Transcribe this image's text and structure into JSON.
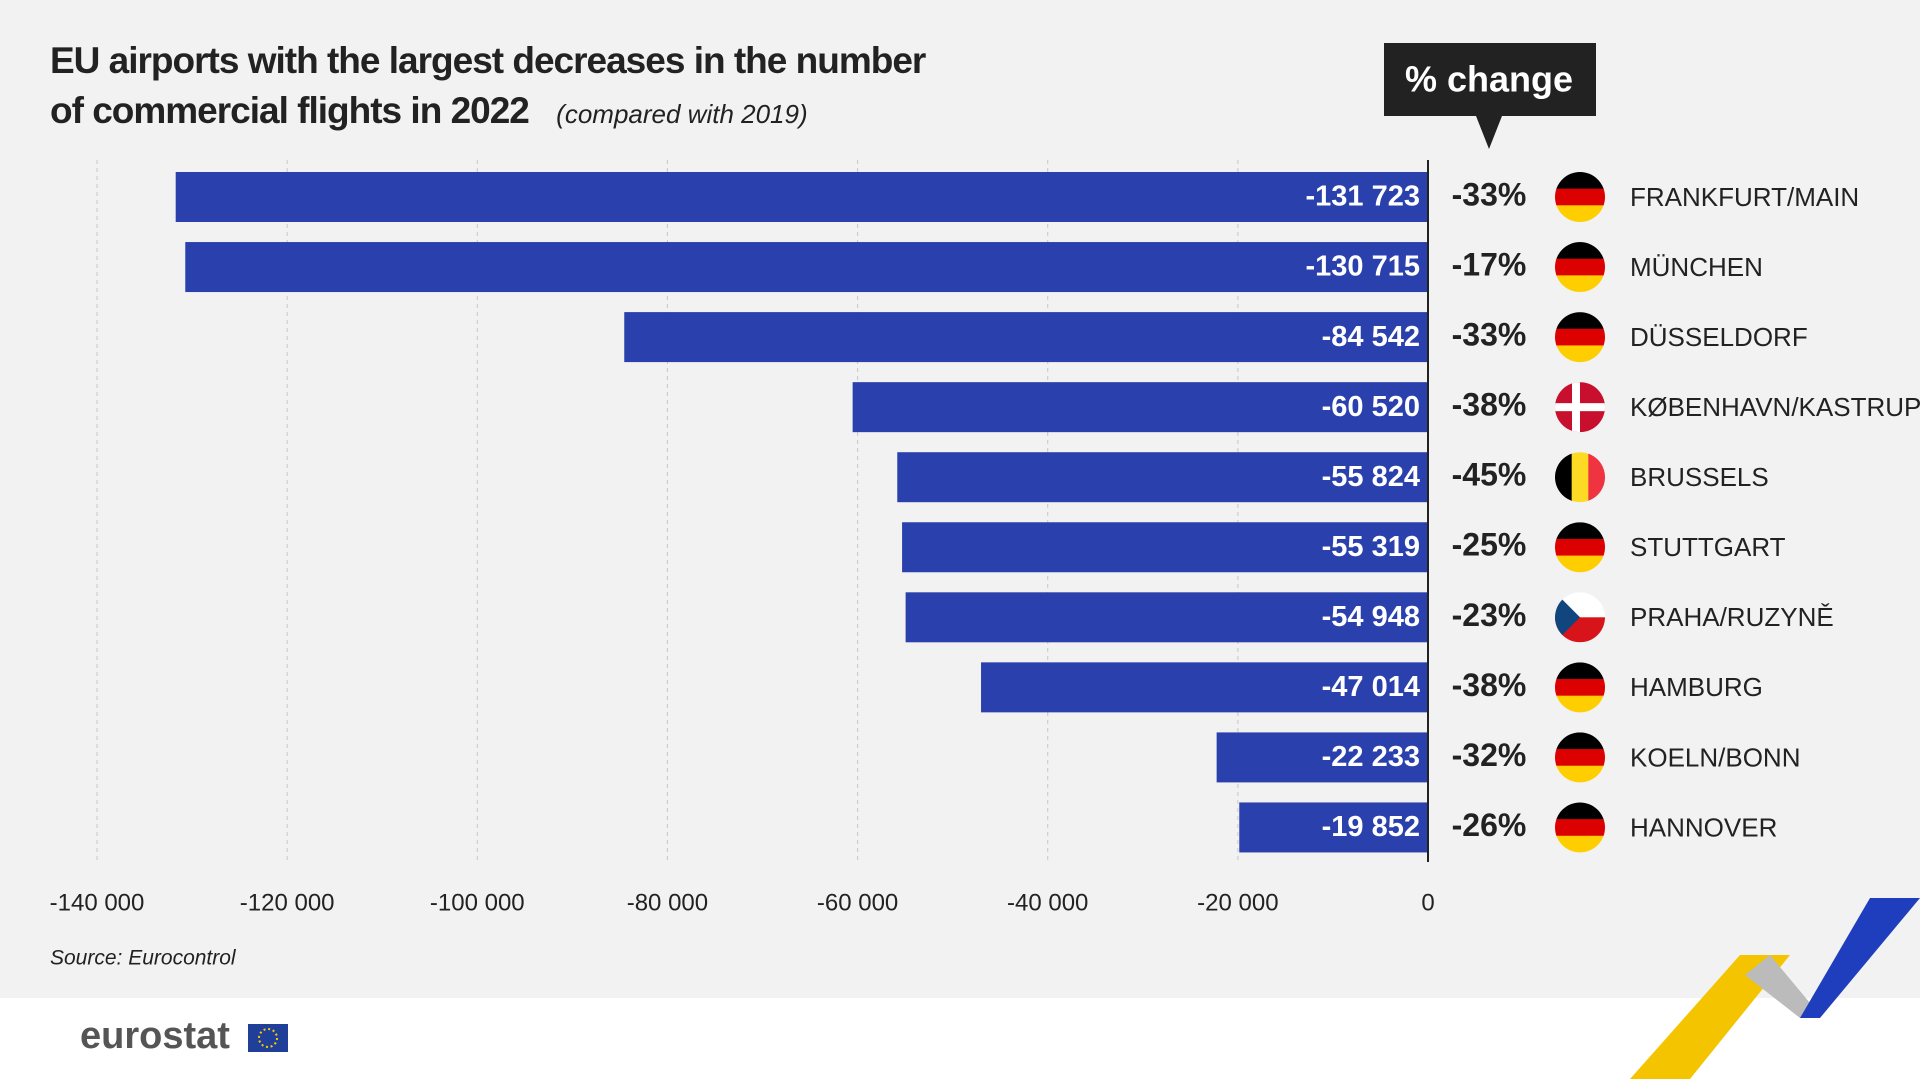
{
  "chart_data": {
    "type": "hbar",
    "title": "EU airports with the largest decreases in the number of commercial flights in 2022",
    "subtitle": "(compared with 2019)",
    "categories": [
      "FRANKFURT/MAIN",
      "MÜNCHEN",
      "DÜSSELDORF",
      "KØBENHAVN/KASTRUP",
      "BRUSSELS",
      "STUTTGART",
      "PRAHA/RUZYNĚ",
      "HAMBURG",
      "KOELN/BONN",
      "HANNOVER"
    ],
    "values": [
      -131723,
      -130715,
      -84542,
      -60520,
      -55824,
      -55319,
      -54948,
      -47014,
      -22233,
      -19852
    ],
    "value_labels": [
      "-131 723",
      "-130 715",
      "-84 542",
      "-60 520",
      "-55 824",
      "-55 319",
      "-54 948",
      "-47 014",
      "-22 233",
      "-19 852"
    ],
    "color": "#2a41ad",
    "pct_change": {
      "header": "% change",
      "values": [
        -33,
        -17,
        -33,
        -38,
        -45,
        -25,
        -23,
        -38,
        -32,
        -26
      ],
      "value_labels": [
        "-33%",
        "-17%",
        "-33%",
        "-38%",
        "-45%",
        "-25%",
        "-23%",
        "-38%",
        "-32%",
        "-26%"
      ]
    },
    "flags": [
      {
        "kind": "h",
        "colors": [
          "#000000",
          "#dd0000",
          "#ffce00"
        ]
      },
      {
        "kind": "h",
        "colors": [
          "#000000",
          "#dd0000",
          "#ffce00"
        ]
      },
      {
        "kind": "h",
        "colors": [
          "#000000",
          "#dd0000",
          "#ffce00"
        ]
      },
      {
        "kind": "cross",
        "colors": [
          "#c8102e",
          "#ffffff"
        ]
      },
      {
        "kind": "v",
        "colors": [
          "#000000",
          "#fdda24",
          "#ef3340"
        ]
      },
      {
        "kind": "h",
        "colors": [
          "#000000",
          "#dd0000",
          "#ffce00"
        ]
      },
      {
        "kind": "cz",
        "colors": [
          "#ffffff",
          "#d7141a",
          "#11457e"
        ]
      },
      {
        "kind": "h",
        "colors": [
          "#000000",
          "#dd0000",
          "#ffce00"
        ]
      },
      {
        "kind": "h",
        "colors": [
          "#000000",
          "#dd0000",
          "#ffce00"
        ]
      },
      {
        "kind": "h",
        "colors": [
          "#000000",
          "#dd0000",
          "#ffce00"
        ]
      }
    ],
    "xlim": [
      -140000,
      0
    ],
    "xticks": [
      {
        "value": -140000,
        "label": "-140 000"
      },
      {
        "value": -120000,
        "label": "-120 000"
      },
      {
        "value": -100000,
        "label": "-100 000"
      },
      {
        "value": -80000,
        "label": "-80 000"
      },
      {
        "value": -60000,
        "label": "-60 000"
      },
      {
        "value": -40000,
        "label": "-40 000"
      },
      {
        "value": -20000,
        "label": "-20 000"
      },
      0
    ],
    "grid": true,
    "source": "Source: Eurocontrol",
    "brand": "eurostat"
  }
}
